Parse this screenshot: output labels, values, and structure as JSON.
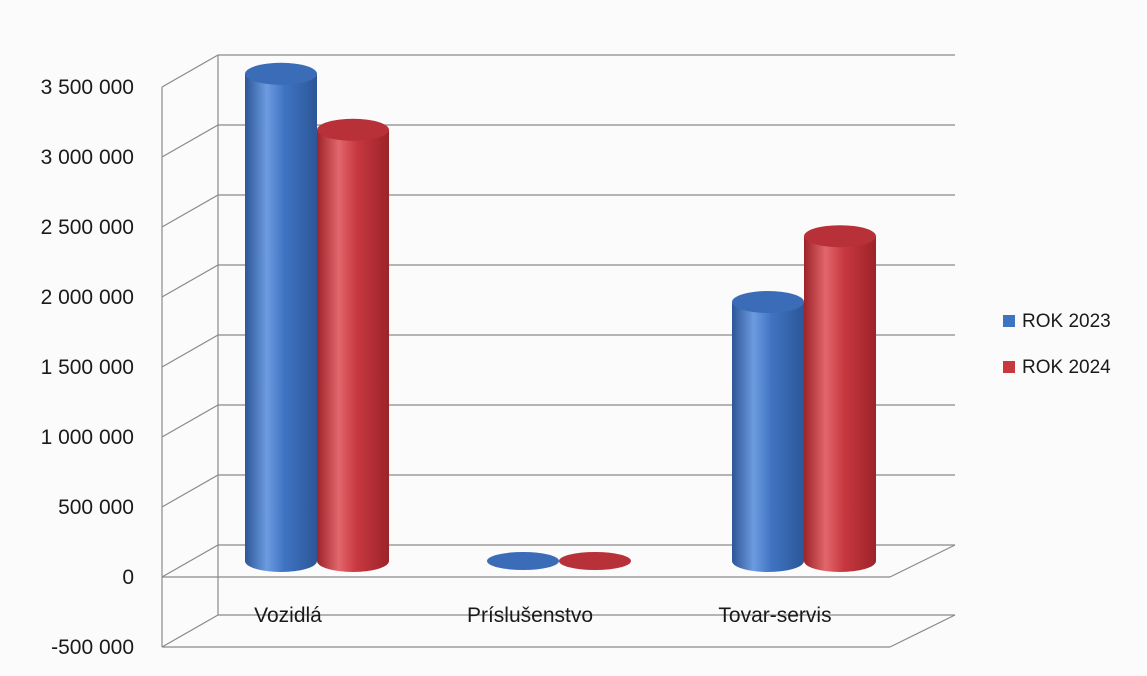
{
  "chart_data": {
    "type": "bar",
    "style": "3d-cylinder",
    "categories": [
      "Vozidlá",
      "Príslušenstvo",
      "Tovar-servis"
    ],
    "series": [
      {
        "name": "ROK 2023",
        "values": [
          3480000,
          0,
          1850000
        ],
        "color": "#3f74c2"
      },
      {
        "name": "ROK 2024",
        "values": [
          3080000,
          0,
          2320000
        ],
        "color": "#c8383f"
      }
    ],
    "y_ticks": [
      "3 500 000",
      "3 000 000",
      "2 500 000",
      "2 000 000",
      "1 500 000",
      "1 000 000",
      "500 000",
      "0",
      "-500 000"
    ],
    "y_tick_values": [
      3500000,
      3000000,
      2500000,
      2000000,
      1500000,
      1000000,
      500000,
      0,
      -500000
    ],
    "ylim": [
      -500000,
      3500000
    ],
    "grid": true,
    "legend_position": "right",
    "title": "",
    "xlabel": "",
    "ylabel": ""
  }
}
